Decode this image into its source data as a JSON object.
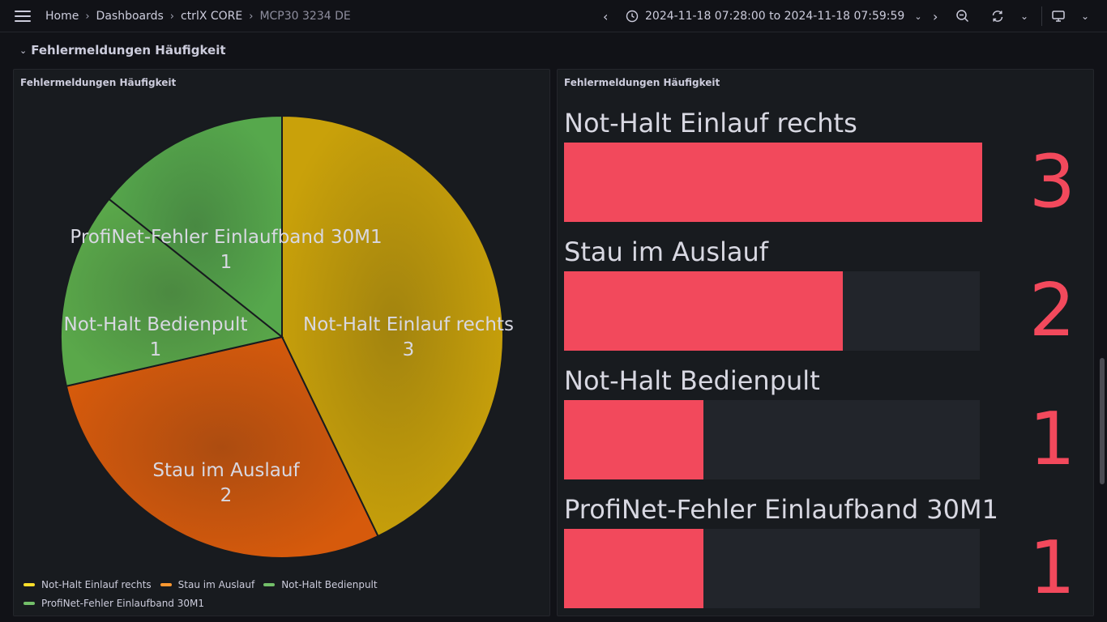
{
  "header": {
    "breadcrumb": [
      "Home",
      "Dashboards",
      "ctrlX CORE",
      "MCP30 3234 DE"
    ],
    "time_range": "2024-11-18 07:28:00 to 2024-11-18 07:59:59"
  },
  "row": {
    "title": "Fehlermeldungen Häufigkeit"
  },
  "pie_panel": {
    "title": "Fehlermeldungen Häufigkeit"
  },
  "bar_panel": {
    "title": "Fehlermeldungen Häufigkeit"
  },
  "chart_data": [
    {
      "type": "pie",
      "title": "Fehlermeldungen Häufigkeit",
      "categories": [
        "Not-Halt Einlauf rechts",
        "Stau im Auslauf",
        "Not-Halt Bedienpult",
        "ProfiNet-Fehler Einlaufband 30M1"
      ],
      "values": [
        3,
        2,
        1,
        1
      ],
      "colors": [
        "#c9a10a",
        "#d65a0c",
        "#5aa84a",
        "#56a84c"
      ],
      "legend_colors": [
        "#fade2a",
        "#ff9830",
        "#73bf69",
        "#73bf69"
      ],
      "legend": "bottom"
    },
    {
      "type": "bar",
      "title": "Fehlermeldungen Häufigkeit",
      "categories": [
        "Not-Halt Einlauf rechts",
        "Stau im Auslauf",
        "Not-Halt Bedienpult",
        "ProfiNet-Fehler Einlaufband 30M1"
      ],
      "values": [
        3,
        2,
        1,
        1
      ],
      "max": 3,
      "color": "#f2495c"
    }
  ]
}
